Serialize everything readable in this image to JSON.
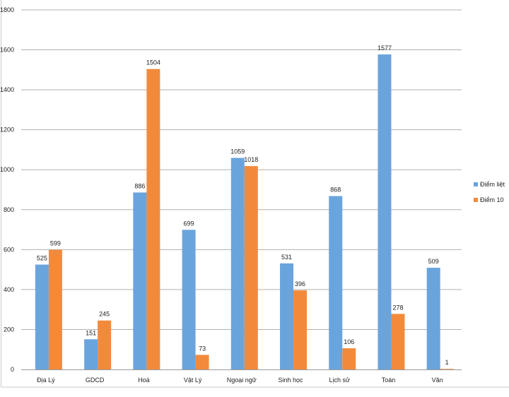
{
  "chart_data": {
    "type": "bar",
    "categories": [
      "Địa Lý",
      "GDCD",
      "Hoá",
      "Vật Lý",
      "Ngoại ngữ",
      "Sinh học",
      "Lịch sử",
      "Toán",
      "Văn"
    ],
    "series": [
      {
        "name": "Điểm liệt",
        "color": "#6aa4dd",
        "values": [
          525,
          151,
          886,
          699,
          1059,
          531,
          868,
          1577,
          509
        ]
      },
      {
        "name": "Điểm 10",
        "color": "#f28a3c",
        "values": [
          599,
          245,
          1504,
          73,
          1018,
          396,
          106,
          278,
          1
        ]
      }
    ],
    "ylim": [
      0,
      1800
    ],
    "yticks": [
      "0",
      "200",
      "400",
      "600",
      "800",
      "1000",
      "1200",
      "1400",
      "1600",
      "1800"
    ],
    "grid": true,
    "legend": "right"
  }
}
